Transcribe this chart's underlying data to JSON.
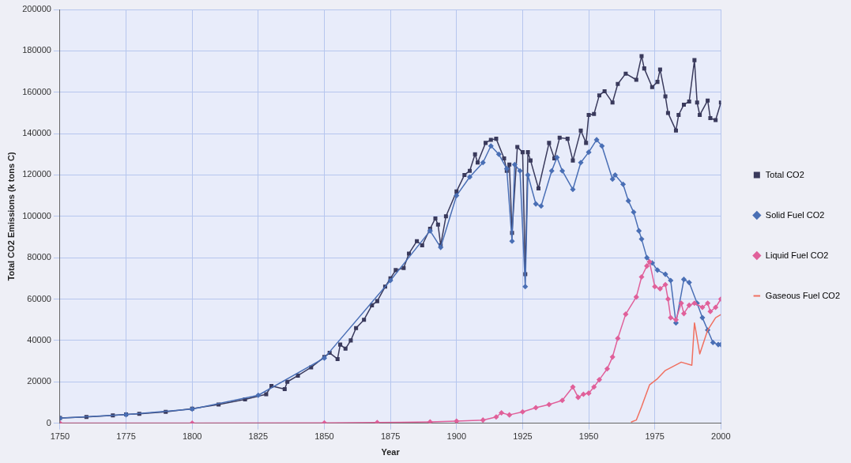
{
  "chart_data": {
    "type": "line",
    "xlabel": "Year",
    "ylabel": "Total CO2 Emissions (k tons C)",
    "xlim": [
      1750,
      2000
    ],
    "xticks": [
      1750,
      1775,
      1800,
      1825,
      1850,
      1875,
      1900,
      1925,
      1950,
      1975,
      2000
    ],
    "ylim": [
      0,
      200000
    ],
    "yticks": [
      0,
      20000,
      40000,
      60000,
      80000,
      100000,
      120000,
      140000,
      160000,
      180000,
      200000
    ],
    "grid": true,
    "legend": "right",
    "series": [
      {
        "name": "Total CO2",
        "color": "#3a3a5c",
        "marker": "square",
        "x": [
          1750,
          1760,
          1770,
          1775,
          1780,
          1790,
          1800,
          1810,
          1820,
          1828,
          1830,
          1835,
          1836,
          1840,
          1845,
          1850,
          1852,
          1855,
          1856,
          1858,
          1860,
          1862,
          1865,
          1868,
          1870,
          1873,
          1875,
          1877,
          1880,
          1882,
          1885,
          1887,
          1890,
          1892,
          1893,
          1894,
          1896,
          1900,
          1903,
          1905,
          1907,
          1908,
          1911,
          1913,
          1915,
          1918,
          1919,
          1920,
          1921,
          1923,
          1925,
          1926,
          1927,
          1928,
          1931,
          1935,
          1937,
          1939,
          1942,
          1944,
          1947,
          1949,
          1950,
          1952,
          1954,
          1956,
          1959,
          1961,
          1964,
          1968,
          1970,
          1971,
          1974,
          1976,
          1977,
          1979,
          1980,
          1983,
          1984,
          1986,
          1988,
          1990,
          1991,
          1992,
          1995,
          1996,
          1998,
          2000
        ],
        "values": [
          2500,
          3000,
          3800,
          4200,
          4500,
          5500,
          7000,
          9000,
          11500,
          14000,
          18000,
          16500,
          20000,
          23000,
          27000,
          32000,
          34000,
          31000,
          38000,
          36000,
          40000,
          46000,
          50000,
          57000,
          59000,
          66000,
          70000,
          74000,
          75000,
          82000,
          88000,
          86000,
          94000,
          99000,
          96000,
          86000,
          100000,
          112000,
          120000,
          122000,
          130000,
          126000,
          135500,
          137000,
          137500,
          128000,
          122000,
          125000,
          92000,
          133500,
          131000,
          72000,
          131000,
          127000,
          113500,
          135500,
          128000,
          138000,
          137500,
          127000,
          141500,
          135500,
          149000,
          149500,
          158500,
          160500,
          155000,
          164000,
          169000,
          166000,
          177500,
          171500,
          162500,
          165000,
          171000,
          158000,
          150000,
          141500,
          149000,
          154000,
          155500,
          175500,
          155000,
          149000,
          156000,
          147500,
          146500,
          155000
        ]
      },
      {
        "name": "Solid Fuel CO2",
        "color": "#4a6fb5",
        "marker": "diamond",
        "x": [
          1750,
          1775,
          1800,
          1825,
          1850,
          1875,
          1890,
          1894,
          1900,
          1905,
          1910,
          1913,
          1916,
          1919,
          1921,
          1922,
          1924,
          1926,
          1927,
          1930,
          1932,
          1936,
          1938,
          1940,
          1944,
          1947,
          1950,
          1953,
          1955,
          1959,
          1960,
          1963,
          1965,
          1967,
          1969,
          1970,
          1972,
          1974,
          1976,
          1979,
          1981,
          1983,
          1986,
          1988,
          1991,
          1993,
          1995,
          1997,
          1999,
          2000
        ],
        "values": [
          2400,
          4100,
          6800,
          13500,
          31500,
          69000,
          93000,
          85000,
          110000,
          119000,
          126000,
          134000,
          130000,
          123000,
          88000,
          125000,
          122000,
          66000,
          120000,
          106000,
          105000,
          122000,
          128500,
          122000,
          113000,
          126000,
          131000,
          137000,
          134000,
          118000,
          120000,
          115500,
          107500,
          102000,
          93000,
          89000,
          80000,
          77500,
          74000,
          72000,
          69000,
          48500,
          69500,
          68000,
          58000,
          51000,
          45000,
          39000,
          38000,
          38000
        ]
      },
      {
        "name": "Liquid Fuel CO2",
        "color": "#e0609a",
        "marker": "diamond",
        "x": [
          1750,
          1800,
          1850,
          1870,
          1890,
          1900,
          1910,
          1915,
          1917,
          1920,
          1925,
          1930,
          1935,
          1940,
          1944,
          1946,
          1948,
          1950,
          1952,
          1954,
          1957,
          1959,
          1961,
          1964,
          1968,
          1970,
          1972,
          1973,
          1975,
          1977,
          1979,
          1980,
          1981,
          1983,
          1985,
          1986,
          1988,
          1990,
          1993,
          1995,
          1996,
          1998,
          2000
        ],
        "values": [
          0,
          0,
          100,
          300,
          600,
          1000,
          1500,
          3000,
          5000,
          4000,
          5500,
          7500,
          9000,
          11000,
          17500,
          12500,
          14000,
          14500,
          17500,
          21000,
          26300,
          32000,
          41000,
          52700,
          61000,
          70700,
          76000,
          78000,
          66000,
          65000,
          67000,
          60000,
          51000,
          50000,
          58000,
          53000,
          57000,
          58000,
          56000,
          58000,
          54000,
          56000,
          60000
        ]
      },
      {
        "name": "Gaseous Fuel CO2",
        "color": "#f07060",
        "marker": "none",
        "x": [
          1966,
          1968,
          1970,
          1973,
          1976,
          1979,
          1985,
          1989,
          1990,
          1992,
          1995,
          1998,
          2000
        ],
        "values": [
          500,
          1500,
          8000,
          18500,
          21500,
          25500,
          29500,
          28000,
          48500,
          33500,
          45000,
          51000,
          52500
        ]
      }
    ]
  }
}
